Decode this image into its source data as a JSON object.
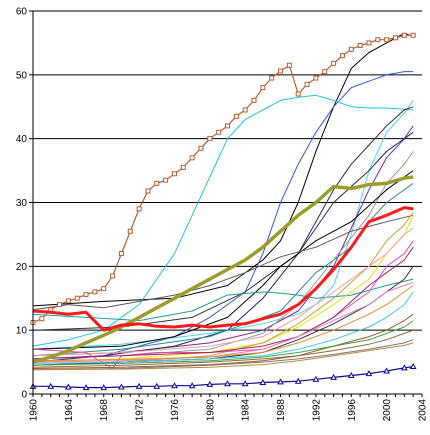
{
  "chart_data": {
    "type": "line",
    "title": "",
    "xlabel": "",
    "ylabel": "",
    "xlim": [
      1960,
      2004
    ],
    "ylim": [
      0,
      60
    ],
    "x_ticks": [
      "1960",
      "1964",
      "1968",
      "1972",
      "1976",
      "1980",
      "1984",
      "1988",
      "1992",
      "1996",
      "2000",
      "2004"
    ],
    "y_ticks": [
      "0",
      "10",
      "20",
      "30",
      "40",
      "50",
      "60"
    ],
    "grid": "horizontal",
    "legend": "none",
    "highlight_series": [
      {
        "color": "#B5602E",
        "width": 1.2,
        "marker": "square",
        "x": [
          1960,
          1961,
          1962,
          1963,
          1964,
          1965,
          1966,
          1967,
          1968,
          1969,
          1970,
          1971,
          1972,
          1973,
          1974,
          1975,
          1976,
          1977,
          1978,
          1979,
          1980,
          1981,
          1982,
          1983,
          1984,
          1985,
          1986,
          1987,
          1988,
          1989,
          1990,
          1991,
          1992,
          1993,
          1994,
          1995,
          1996,
          1997,
          1998,
          1999,
          2000,
          2001,
          2002,
          2003
        ],
        "values": [
          11.2,
          11.8,
          13.2,
          14.0,
          14.6,
          15.0,
          15.6,
          16.0,
          16.5,
          18.5,
          22.0,
          25.5,
          29.0,
          31.8,
          33.0,
          33.5,
          34.5,
          35.5,
          37.0,
          38.5,
          40.0,
          41.0,
          42.0,
          43.5,
          44.5,
          46.0,
          48.0,
          49.5,
          50.6,
          51.5,
          47.0,
          48.5,
          49.5,
          50.5,
          51.8,
          53.0,
          54.0,
          54.6,
          55.0,
          55.5,
          55.5,
          55.8,
          56.2,
          56.2
        ]
      },
      {
        "color": "#9C9C2C",
        "width": 3.5,
        "marker": "none",
        "x": [
          1960,
          1962,
          1964,
          1966,
          1968,
          1970,
          1972,
          1974,
          1976,
          1978,
          1980,
          1982,
          1984,
          1986,
          1988,
          1990,
          1992,
          1994,
          1996,
          1998,
          2000,
          2002,
          2003
        ],
        "values": [
          5.0,
          5.8,
          6.8,
          8.0,
          9.2,
          10.5,
          12.0,
          13.5,
          15.0,
          16.5,
          18.0,
          19.5,
          21.0,
          23.0,
          25.5,
          28.0,
          30.0,
          32.5,
          32.2,
          32.8,
          33.0,
          33.8,
          34.0
        ]
      },
      {
        "color": "#FF1A1A",
        "width": 3.0,
        "marker": "none",
        "x": [
          1960,
          1962,
          1964,
          1966,
          1968,
          1970,
          1972,
          1974,
          1976,
          1978,
          1980,
          1982,
          1984,
          1986,
          1988,
          1990,
          1992,
          1994,
          1996,
          1998,
          2000,
          2002,
          2003
        ],
        "values": [
          13.0,
          12.8,
          12.5,
          12.8,
          10.0,
          10.8,
          11.0,
          10.6,
          10.5,
          10.8,
          10.5,
          10.8,
          11.0,
          11.8,
          12.5,
          14.0,
          16.5,
          19.5,
          23.0,
          27.0,
          28.0,
          29.2,
          29.0
        ]
      },
      {
        "color": "#0A0A9A",
        "width": 1.2,
        "marker": "triangle",
        "x": [
          1960,
          1962,
          1964,
          1966,
          1968,
          1970,
          1972,
          1974,
          1976,
          1978,
          1980,
          1982,
          1984,
          1986,
          1988,
          1990,
          1992,
          1994,
          1996,
          1998,
          2000,
          2002,
          2003
        ],
        "values": [
          1.2,
          1.2,
          1.1,
          1.0,
          1.0,
          1.1,
          1.2,
          1.2,
          1.3,
          1.3,
          1.5,
          1.6,
          1.6,
          1.8,
          1.9,
          2.0,
          2.3,
          2.6,
          2.9,
          3.2,
          3.6,
          4.1,
          4.3
        ]
      }
    ],
    "series": [
      {
        "color": "#000000",
        "x": [
          1960,
          1968,
          1976,
          1982,
          1986,
          1988,
          1990,
          1992,
          1994,
          1996,
          1998,
          2000,
          2002,
          2003
        ],
        "values": [
          13.8,
          14.5,
          15.0,
          17.0,
          21.0,
          24.0,
          30.0,
          38.0,
          45.0,
          51.0,
          53.5,
          55.0,
          56.5,
          56.0
        ]
      },
      {
        "color": "#2E5BD9",
        "x": [
          1960,
          1968,
          1976,
          1980,
          1984,
          1986,
          1988,
          1990,
          1992,
          1994,
          1996,
          1998,
          2000,
          2002,
          2003
        ],
        "values": [
          5.5,
          6.0,
          9.0,
          12.0,
          16.0,
          22.0,
          30.0,
          36.0,
          41.0,
          45.0,
          48.0,
          49.0,
          50.0,
          50.5,
          50.5
        ]
      },
      {
        "color": "#21C5E0",
        "x": [
          1960,
          1964,
          1968,
          1972,
          1976,
          1978,
          1980,
          1982,
          1984,
          1986,
          1988,
          1990,
          1992,
          1994,
          1996,
          1998,
          2000,
          2002,
          2003
        ],
        "values": [
          7.5,
          8.5,
          10.0,
          14.0,
          22.0,
          28.0,
          34.0,
          40.0,
          43.0,
          44.5,
          46.0,
          46.5,
          46.8,
          46.0,
          45.0,
          44.8,
          44.8,
          44.6,
          44.5
        ]
      },
      {
        "color": "#49D7F5",
        "x": [
          1960,
          1970,
          1980,
          1986,
          1990,
          1992,
          1994,
          1996,
          1998,
          2000,
          2002,
          2003
        ],
        "values": [
          7.0,
          7.8,
          9.5,
          11.0,
          12.5,
          14.0,
          17.0,
          25.0,
          35.0,
          41.0,
          44.0,
          46.0
        ]
      },
      {
        "color": "#303030",
        "x": [
          1960,
          1970,
          1978,
          1984,
          1988,
          1990,
          1992,
          1994,
          1996,
          1998,
          2000,
          2002,
          2003
        ],
        "values": [
          10.0,
          10.5,
          12.0,
          16.0,
          20.0,
          22.0,
          27.0,
          32.0,
          36.0,
          39.0,
          42.0,
          44.5,
          45.0
        ]
      },
      {
        "color": "#7A2A8F",
        "x": [
          1960,
          1970,
          1980,
          1986,
          1990,
          1994,
          1996,
          1998,
          2000,
          2002,
          2003
        ],
        "values": [
          6.0,
          6.5,
          8.0,
          10.0,
          13.0,
          20.0,
          26.0,
          32.0,
          37.0,
          40.0,
          42.0
        ]
      },
      {
        "color": "#1B2A6B",
        "x": [
          1960,
          1968,
          1976,
          1982,
          1986,
          1990,
          1994,
          1998,
          2000,
          2002,
          2003
        ],
        "values": [
          5.0,
          6.0,
          7.5,
          10.0,
          15.0,
          22.0,
          30.0,
          35.0,
          38.0,
          40.0,
          41.0
        ]
      },
      {
        "color": "#9898A8",
        "x": [
          1960,
          1970,
          1980,
          1986,
          1990,
          1994,
          1998,
          2000,
          2002,
          2003
        ],
        "values": [
          5.5,
          6.0,
          7.0,
          9.5,
          14.0,
          21.0,
          28.0,
          33.0,
          36.0,
          38.0
        ]
      },
      {
        "color": "#000000",
        "x": [
          1960,
          1970,
          1976,
          1982,
          1986,
          1988,
          1990,
          1992,
          1996,
          2000,
          2003
        ],
        "values": [
          7.0,
          7.5,
          9.0,
          12.0,
          17.0,
          20.0,
          22.0,
          24.0,
          27.0,
          32.0,
          35.0
        ]
      },
      {
        "color": "#2F8F8F",
        "x": [
          1960,
          1970,
          1980,
          1984,
          1988,
          1990,
          1992,
          1994,
          1996,
          1998,
          2000,
          2002,
          2003
        ],
        "values": [
          6.0,
          7.0,
          9.0,
          11.0,
          13.0,
          16.0,
          19.0,
          21.0,
          23.0,
          27.0,
          30.0,
          32.0,
          33.0
        ]
      },
      {
        "color": "#5A5A5A",
        "x": [
          1960,
          1964,
          1968,
          1972,
          1976,
          1980,
          1984,
          1988,
          1992,
          1996,
          2000,
          2003
        ],
        "values": [
          13.2,
          14.0,
          13.5,
          14.5,
          15.5,
          17.0,
          19.0,
          21.5,
          23.0,
          25.5,
          27.0,
          28.0
        ]
      },
      {
        "color": "#1F9D9A",
        "x": [
          1960,
          1966,
          1972,
          1978,
          1982,
          1986,
          1988,
          1990,
          1992,
          1996,
          2000,
          2003
        ],
        "values": [
          12.5,
          12.0,
          11.5,
          13.0,
          15.5,
          16.0,
          15.8,
          15.5,
          15.0,
          15.5,
          17.0,
          18.0
        ]
      },
      {
        "color": "#E6E600",
        "x": [
          1960,
          1970,
          1980,
          1986,
          1990,
          1994,
          1998,
          2000,
          2002,
          2003
        ],
        "values": [
          5.0,
          5.5,
          6.5,
          8.0,
          10.5,
          14.0,
          18.0,
          22.0,
          25.0,
          28.0
        ]
      },
      {
        "color": "#C9A33A",
        "x": [
          1960,
          1970,
          1980,
          1986,
          1990,
          1994,
          1998,
          2000,
          2002,
          2003
        ],
        "values": [
          4.5,
          5.0,
          6.0,
          8.0,
          11.0,
          15.0,
          20.0,
          24.0,
          26.5,
          28.5
        ]
      },
      {
        "color": "#FF9C9C",
        "x": [
          1960,
          1970,
          1980,
          1986,
          1990,
          1994,
          1998,
          2000,
          2002,
          2003
        ],
        "values": [
          6.0,
          6.5,
          7.5,
          9.0,
          12.0,
          16.0,
          20.0,
          22.0,
          25.0,
          26.0
        ]
      },
      {
        "color": "#E14AB3",
        "x": [
          1960,
          1966,
          1969,
          1970,
          1974,
          1980,
          1986,
          1990,
          1994,
          1998,
          2000,
          2002,
          2003
        ],
        "values": [
          7.0,
          6.5,
          4.0,
          6.0,
          6.5,
          6.5,
          7.0,
          9.0,
          12.0,
          16.0,
          20.0,
          22.0,
          24.0
        ]
      },
      {
        "color": "#A02A60",
        "x": [
          1960,
          1970,
          1980,
          1986,
          1990,
          1994,
          1998,
          2000,
          2002,
          2003
        ],
        "values": [
          5.5,
          6.0,
          6.5,
          7.5,
          9.0,
          12.0,
          17.0,
          19.0,
          21.0,
          23.0
        ]
      },
      {
        "color": "#333333",
        "x": [
          1960,
          1970,
          1980,
          1986,
          1990,
          1994,
          1998,
          2000,
          2002,
          2003
        ],
        "values": [
          4.5,
          5.0,
          5.5,
          6.5,
          8.5,
          11.0,
          14.0,
          16.0,
          18.0,
          20.0
        ]
      },
      {
        "color": "#F07AC0",
        "x": [
          1960,
          1970,
          1980,
          1986,
          1990,
          1994,
          1998,
          2000,
          2002,
          2003
        ],
        "values": [
          5.0,
          5.2,
          5.8,
          7.0,
          9.0,
          11.5,
          14.0,
          16.0,
          17.0,
          17.5
        ]
      },
      {
        "color": "#E58E2A",
        "x": [
          1960,
          1970,
          1980,
          1986,
          1990,
          1994,
          1998,
          2000,
          2002,
          2003
        ],
        "values": [
          5.2,
          5.4,
          5.8,
          6.5,
          8.0,
          10.0,
          12.5,
          14.0,
          16.0,
          17.0
        ]
      },
      {
        "color": "#40C8E8",
        "x": [
          1960,
          1970,
          1980,
          1986,
          1990,
          1994,
          1998,
          2000,
          2002,
          2003
        ],
        "values": [
          4.8,
          5.0,
          5.5,
          6.0,
          7.0,
          8.5,
          10.5,
          12.0,
          14.0,
          16.0
        ]
      },
      {
        "color": "#A35A2E",
        "x": [
          1960,
          1970,
          1980,
          1986,
          1990,
          1994,
          1998,
          2000,
          2002,
          2003
        ],
        "values": [
          4.0,
          4.2,
          4.6,
          5.2,
          6.0,
          7.5,
          9.0,
          10.0,
          11.5,
          12.5
        ]
      },
      {
        "color": "#3FA34D",
        "x": [
          1960,
          1970,
          1980,
          1986,
          1990,
          1994,
          1998,
          2000,
          2002,
          2003
        ],
        "values": [
          4.5,
          4.8,
          5.2,
          5.8,
          6.5,
          7.5,
          8.5,
          9.5,
          10.5,
          11.5
        ]
      },
      {
        "color": "#8A6D3B",
        "x": [
          1960,
          1970,
          1980,
          1986,
          1990,
          1994,
          1998,
          2000,
          2002,
          2003
        ],
        "values": [
          4.2,
          4.5,
          5.0,
          5.5,
          6.0,
          6.8,
          7.8,
          8.5,
          9.5,
          10.0
        ]
      },
      {
        "color": "#7B7B7B",
        "x": [
          1960,
          1970,
          1980,
          1986,
          1990,
          1994,
          1998,
          2000,
          2002,
          2003
        ],
        "values": [
          3.8,
          4.0,
          4.5,
          5.0,
          5.5,
          6.2,
          7.0,
          7.5,
          8.0,
          8.5
        ]
      },
      {
        "color": "#C08A40",
        "x": [
          1960,
          1970,
          1980,
          1986,
          1990,
          1994,
          1998,
          2000,
          2002,
          2003
        ],
        "values": [
          3.8,
          3.9,
          4.2,
          4.6,
          5.2,
          6.0,
          6.8,
          7.2,
          7.6,
          8.0
        ]
      }
    ]
  }
}
